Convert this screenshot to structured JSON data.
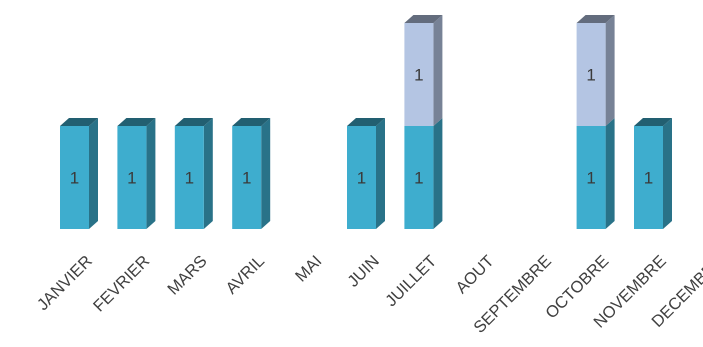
{
  "chart_data": {
    "type": "bar",
    "stacked": true,
    "style": "3d",
    "categories": [
      "JANVIER",
      "FEVRIER",
      "MARS",
      "AVRIL",
      "MAI",
      "JUIN",
      "JUILLET",
      "AOUT",
      "SEPTEMBRE",
      "OCTOBRE",
      "NOVEMBRE",
      "DECEMBRE"
    ],
    "series": [
      {
        "values": [
          1,
          1,
          1,
          1,
          0,
          1,
          1,
          0,
          0,
          1,
          1,
          0
        ],
        "color": "#3eadce"
      },
      {
        "values": [
          0,
          0,
          0,
          0,
          0,
          0,
          1,
          0,
          0,
          1,
          0,
          0
        ],
        "color": "#b4c5e3"
      }
    ],
    "data_labels": true,
    "grid": false,
    "legend": "none",
    "ylim": [
      0,
      2
    ]
  }
}
